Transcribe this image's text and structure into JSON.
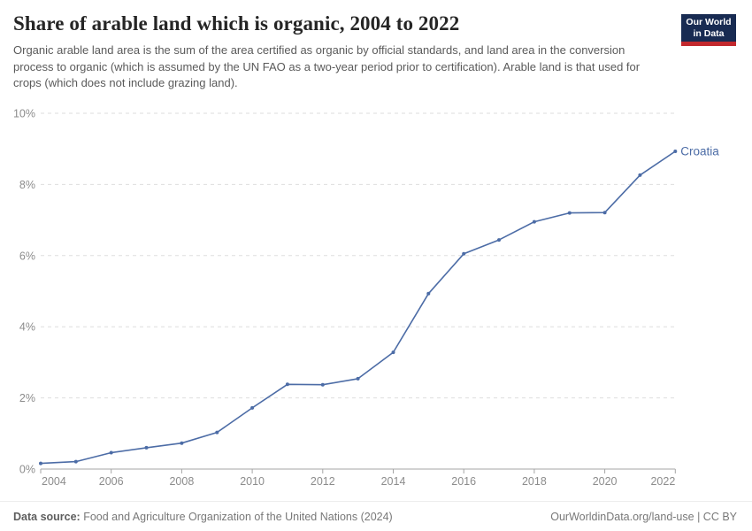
{
  "header": {
    "title": "Share of arable land which is organic, 2004 to 2022",
    "subtitle": "Organic arable land area is the sum of the area certified as organic by official standards, and land area in the conversion process to organic (which is assumed by the UN FAO as a two-year period prior to certification). Arable land is that used for crops (which does not include grazing land).",
    "logo": {
      "line1": "Our World",
      "line2": "in Data",
      "bg_color": "#182b52",
      "stripe_color": "#c2282d"
    }
  },
  "chart_data": {
    "type": "line",
    "title": "Share of arable land which is organic, 2004 to 2022",
    "x": [
      2004,
      2005,
      2006,
      2007,
      2008,
      2009,
      2010,
      2011,
      2012,
      2013,
      2014,
      2015,
      2016,
      2017,
      2018,
      2019,
      2020,
      2021,
      2022
    ],
    "series": [
      {
        "name": "Croatia",
        "color": "#4c6ca6",
        "values": [
          0.16,
          0.21,
          0.46,
          0.6,
          0.73,
          1.03,
          1.72,
          2.38,
          2.37,
          2.54,
          3.28,
          4.93,
          6.05,
          6.44,
          6.95,
          7.2,
          7.21,
          8.26,
          8.93
        ]
      }
    ],
    "xlabel": "",
    "ylabel": "",
    "xlim": [
      2004,
      2022
    ],
    "ylim": [
      0,
      10
    ],
    "yticks": [
      {
        "value": 0,
        "label": "0%"
      },
      {
        "value": 2,
        "label": "2%"
      },
      {
        "value": 4,
        "label": "4%"
      },
      {
        "value": 6,
        "label": "6%"
      },
      {
        "value": 8,
        "label": "8%"
      },
      {
        "value": 10,
        "label": "10%"
      }
    ],
    "xticks": [
      {
        "value": 2004,
        "label": "2004"
      },
      {
        "value": 2006,
        "label": "2006"
      },
      {
        "value": 2008,
        "label": "2008"
      },
      {
        "value": 2010,
        "label": "2010"
      },
      {
        "value": 2012,
        "label": "2012"
      },
      {
        "value": 2014,
        "label": "2014"
      },
      {
        "value": 2016,
        "label": "2016"
      },
      {
        "value": 2018,
        "label": "2018"
      },
      {
        "value": 2020,
        "label": "2020"
      },
      {
        "value": 2022,
        "label": "2022"
      }
    ],
    "grid": "horizontal-dashed",
    "legend_position": "end-of-line-label",
    "colors": {
      "gridline": "#dedede",
      "axis": "#a5a5a5",
      "tick_label": "#8c8c8c"
    }
  },
  "footer": {
    "datasource_label": "Data source:",
    "datasource_text": " Food and Agriculture Organization of the United Nations (2024)",
    "credit_link": "OurWorldinData.org/land-use",
    "credit_divider": " | ",
    "credit_license": "CC BY"
  }
}
